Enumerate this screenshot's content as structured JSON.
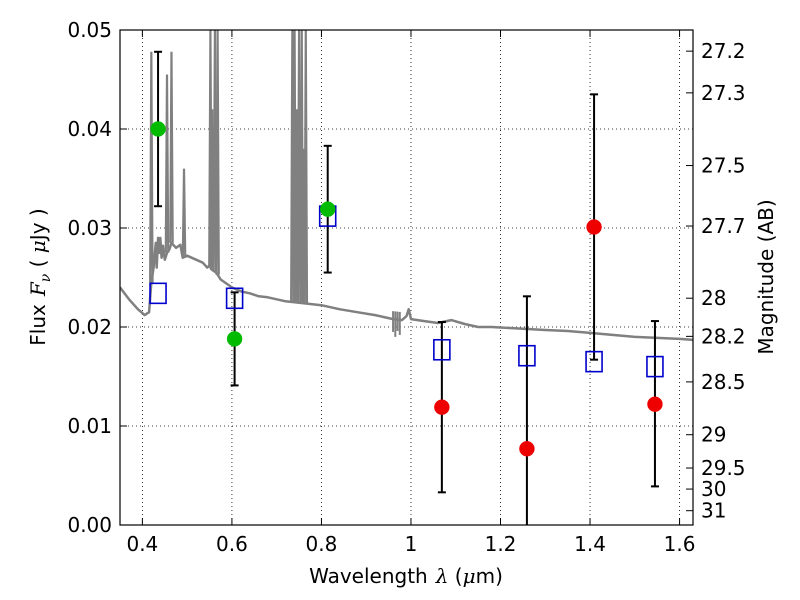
{
  "chart_data": {
    "type": "scatter",
    "xlabel": {
      "prefix": "Wavelength",
      "symbol": "λ",
      "unit_open": " (",
      "mu": "μ",
      "unit_close": "m)"
    },
    "ylabel": {
      "prefix": "Flux",
      "symbol": "F",
      "sub": "ν",
      "unit_open": " ( ",
      "mu": "μ",
      "unit_close": "Jy )"
    },
    "ylabel_right": "Magnitude (AB)",
    "xlim": [
      0.35,
      1.63
    ],
    "ylim": [
      0.0,
      0.05
    ],
    "x_ticks": [
      0.4,
      0.6,
      0.8,
      1.0,
      1.2,
      1.4,
      1.6
    ],
    "x_tick_labels": [
      "0.4",
      "0.6",
      "0.8",
      "1",
      "1.2",
      "1.4",
      "1.6"
    ],
    "y_ticks": [
      0.0,
      0.01,
      0.02,
      0.03,
      0.04,
      0.05
    ],
    "y_tick_labels": [
      "0.00",
      "0.01",
      "0.02",
      "0.03",
      "0.04",
      "0.05"
    ],
    "right_ticks": [
      {
        "label": "27.2",
        "mag": 27.2
      },
      {
        "label": "27.3",
        "mag": 27.3
      },
      {
        "label": "27.5",
        "mag": 27.5
      },
      {
        "label": "27.7",
        "mag": 27.7
      },
      {
        "label": "28",
        "mag": 28.0
      },
      {
        "label": "28.2",
        "mag": 28.2
      },
      {
        "label": "28.5",
        "mag": 28.5
      },
      {
        "label": "29",
        "mag": 29.0
      },
      {
        "label": "29.5",
        "mag": 29.5
      },
      {
        "label": "30",
        "mag": 30.0
      },
      {
        "label": "31",
        "mag": 31.0
      }
    ],
    "grid": true,
    "colors": {
      "green": "#00bb00",
      "red": "#ee0000",
      "blue": "#0000cc",
      "model": "#808080"
    },
    "series": [
      {
        "marker": "circle",
        "color": "#00bb00",
        "points": [
          {
            "x": 0.435,
            "y": 0.04,
            "lo": 0.0322,
            "hi": 0.0478
          },
          {
            "x": 0.606,
            "y": 0.0188,
            "lo": 0.0141,
            "hi": 0.0235
          },
          {
            "x": 0.814,
            "y": 0.0319,
            "lo": 0.0255,
            "hi": 0.0383
          }
        ]
      },
      {
        "marker": "circle",
        "color": "#ee0000",
        "points": [
          {
            "x": 1.069,
            "y": 0.0119,
            "lo": 0.0033,
            "hi": 0.0205
          },
          {
            "x": 1.259,
            "y": 0.0077,
            "lo": 0.0,
            "hi": 0.0231
          },
          {
            "x": 1.409,
            "y": 0.0301,
            "lo": 0.0167,
            "hi": 0.0435
          },
          {
            "x": 1.545,
            "y": 0.0122,
            "lo": 0.0039,
            "hi": 0.0206
          }
        ]
      },
      {
        "marker": "square",
        "color": "#0000cc",
        "points": [
          {
            "x": 0.435,
            "y": 0.0234
          },
          {
            "x": 0.606,
            "y": 0.0229
          },
          {
            "x": 0.814,
            "y": 0.0312
          },
          {
            "x": 1.069,
            "y": 0.0177
          },
          {
            "x": 1.259,
            "y": 0.0171
          },
          {
            "x": 1.409,
            "y": 0.0165
          },
          {
            "x": 1.545,
            "y": 0.016
          }
        ]
      }
    ],
    "model_spectrum": {
      "color": "#808080",
      "points": [
        [
          0.35,
          0.024
        ],
        [
          0.37,
          0.0228
        ],
        [
          0.39,
          0.0218
        ],
        [
          0.405,
          0.0212
        ],
        [
          0.415,
          0.0215
        ],
        [
          0.42,
          0.0245
        ],
        [
          0.425,
          0.026
        ],
        [
          0.43,
          0.0285
        ],
        [
          0.432,
          0.026
        ],
        [
          0.435,
          0.029
        ],
        [
          0.438,
          0.0275
        ],
        [
          0.44,
          0.029
        ],
        [
          0.443,
          0.027
        ],
        [
          0.446,
          0.0282
        ],
        [
          0.45,
          0.0268
        ],
        [
          0.455,
          0.0275
        ],
        [
          0.46,
          0.0278
        ],
        [
          0.465,
          0.0285
        ],
        [
          0.475,
          0.028
        ],
        [
          0.485,
          0.0283
        ],
        [
          0.49,
          0.027
        ],
        [
          0.5,
          0.0272
        ],
        [
          0.51,
          0.027
        ],
        [
          0.52,
          0.0268
        ],
        [
          0.535,
          0.0265
        ],
        [
          0.545,
          0.026
        ],
        [
          0.55,
          0.0262
        ],
        [
          0.555,
          0.0258
        ],
        [
          0.565,
          0.0255
        ],
        [
          0.575,
          0.0248
        ],
        [
          0.6,
          0.024
        ],
        [
          0.62,
          0.0236
        ],
        [
          0.64,
          0.0234
        ],
        [
          0.66,
          0.0231
        ],
        [
          0.68,
          0.023
        ],
        [
          0.7,
          0.0228
        ],
        [
          0.72,
          0.0226
        ],
        [
          0.74,
          0.0225
        ],
        [
          0.76,
          0.0224
        ],
        [
          0.8,
          0.0222
        ],
        [
          0.84,
          0.0218
        ],
        [
          0.88,
          0.0215
        ],
        [
          0.92,
          0.0212
        ],
        [
          0.94,
          0.021
        ],
        [
          0.96,
          0.0208
        ],
        [
          0.98,
          0.0207
        ],
        [
          0.99,
          0.0211
        ],
        [
          0.995,
          0.0218
        ],
        [
          1.0,
          0.0208
        ],
        [
          1.03,
          0.0206
        ],
        [
          1.06,
          0.0204
        ],
        [
          1.09,
          0.0207
        ],
        [
          1.12,
          0.0203
        ],
        [
          1.15,
          0.02
        ],
        [
          1.18,
          0.02
        ],
        [
          1.22,
          0.0199
        ],
        [
          1.26,
          0.0198
        ],
        [
          1.3,
          0.0197
        ],
        [
          1.35,
          0.0196
        ],
        [
          1.4,
          0.0194
        ],
        [
          1.45,
          0.0192
        ],
        [
          1.5,
          0.019
        ],
        [
          1.55,
          0.0189
        ],
        [
          1.6,
          0.0188
        ],
        [
          1.63,
          0.0187
        ]
      ],
      "spikes": [
        {
          "x": 0.42,
          "y": 0.0478
        },
        {
          "x": 0.455,
          "y": 0.0455
        },
        {
          "x": 0.465,
          "y": 0.0478
        },
        {
          "x": 0.493,
          "y": 0.036
        },
        {
          "x": 0.552,
          "y": 0.05
        },
        {
          "x": 0.556,
          "y": 0.042
        },
        {
          "x": 0.562,
          "y": 0.05
        },
        {
          "x": 0.568,
          "y": 0.05
        },
        {
          "x": 0.735,
          "y": 0.05
        },
        {
          "x": 0.74,
          "y": 0.05
        },
        {
          "x": 0.745,
          "y": 0.042
        },
        {
          "x": 0.75,
          "y": 0.05
        },
        {
          "x": 0.756,
          "y": 0.05
        },
        {
          "x": 0.76,
          "y": 0.038
        },
        {
          "x": 0.765,
          "y": 0.05
        }
      ],
      "dips": [
        {
          "x": 0.96,
          "y": 0.0195
        },
        {
          "x": 0.965,
          "y": 0.019
        },
        {
          "x": 0.97,
          "y": 0.0196
        },
        {
          "x": 0.975,
          "y": 0.0192
        }
      ]
    }
  }
}
